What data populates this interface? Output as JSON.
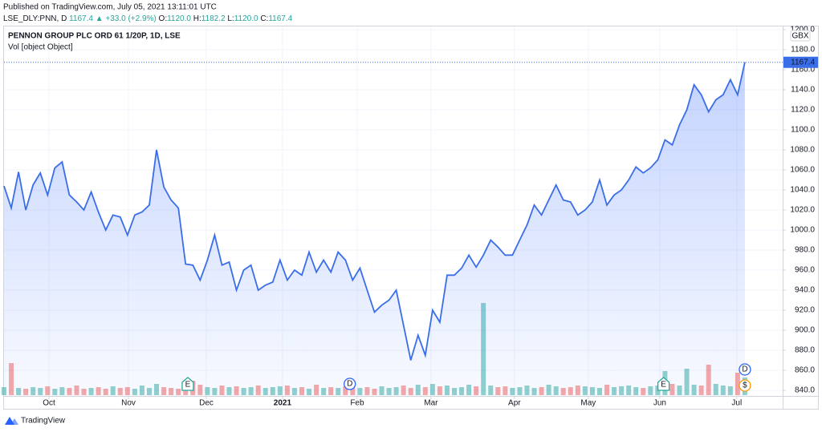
{
  "header": {
    "published": "Published on TradingView.com, July 05, 2021 13:11:01 UTC",
    "symbol": "LSE_DLY:PNN, D",
    "last": "1167.4",
    "arrow": "▲",
    "change": "+33.0 (+2.9%)",
    "o_label": "O:",
    "o": "1120.0",
    "h_label": "H:",
    "h": "1182.2",
    "l_label": "L:",
    "l": "1120.0",
    "c_label": "C:",
    "c": "1167.4"
  },
  "footer": {
    "brand": "TradingView"
  },
  "chart_data": {
    "type": "line",
    "title": "PENNON GROUP PLC ORD 61 1/20P, 1D, LSE",
    "subtitle": "Vol [object Object]",
    "currency": "GBX",
    "last_label": "1167.4",
    "area": true,
    "grid": true,
    "series": [
      {
        "name": "PNN",
        "color": "#3a6ee8",
        "values": [
          1044,
          1022,
          1058,
          1020,
          1045,
          1057,
          1035,
          1062,
          1068,
          1035,
          1028,
          1020,
          1038,
          1018,
          1000,
          1015,
          1013,
          995,
          1015,
          1018,
          1025,
          1080,
          1043,
          1030,
          1022,
          966,
          965,
          950,
          970,
          995,
          965,
          968,
          940,
          960,
          965,
          940,
          945,
          948,
          970,
          950,
          960,
          955,
          978,
          958,
          970,
          958,
          978,
          970,
          950,
          962,
          940,
          918,
          925,
          930,
          940,
          905,
          870,
          895,
          875,
          920,
          908,
          955,
          955,
          962,
          975,
          963,
          975,
          990,
          983,
          975,
          975,
          990,
          1005,
          1025,
          1015,
          1030,
          1045,
          1030,
          1028,
          1015,
          1020,
          1028,
          1050,
          1025,
          1035,
          1040,
          1050,
          1063,
          1057,
          1062,
          1070,
          1090,
          1085,
          1105,
          1120,
          1145,
          1135,
          1118,
          1130,
          1135,
          1150,
          1135,
          1167.4
        ]
      }
    ],
    "volume": {
      "up_color": "rgba(38,166,154,0.5)",
      "down_color": "rgba(239,83,80,0.5)",
      "values": [
        10,
        40,
        9,
        8,
        10,
        9,
        11,
        8,
        10,
        9,
        12,
        8,
        9,
        10,
        8,
        11,
        9,
        10,
        8,
        12,
        9,
        14,
        10,
        9,
        8,
        11,
        18,
        13,
        10,
        9,
        12,
        10,
        11,
        9,
        10,
        12,
        9,
        10,
        11,
        12,
        9,
        10,
        8,
        13,
        9,
        10,
        9,
        11,
        12,
        9,
        10,
        8,
        11,
        9,
        10,
        12,
        9,
        13,
        10,
        14,
        11,
        12,
        9,
        10,
        13,
        11,
        115,
        12,
        10,
        11,
        9,
        10,
        12,
        9,
        10,
        13,
        11,
        9,
        10,
        12,
        11,
        10,
        9,
        13,
        10,
        11,
        12,
        10,
        9,
        11,
        12,
        30,
        14,
        12,
        33,
        13,
        12,
        38,
        14,
        12,
        11,
        28,
        22
      ]
    },
    "events": [
      {
        "x": 25.3,
        "label": "E",
        "kind": "earnings"
      },
      {
        "x": 47.6,
        "label": "D",
        "kind": "dividend"
      },
      {
        "x": 90.8,
        "label": "E",
        "kind": "earnings"
      },
      {
        "x": 102,
        "label": "D",
        "kind": "dividend"
      },
      {
        "x": 102,
        "label": "$",
        "kind": "split"
      }
    ],
    "xlim": [
      0,
      107.2
    ],
    "xticks": [
      {
        "value": 6.19,
        "label": "Oct"
      },
      {
        "value": 17.13,
        "label": "Nov"
      },
      {
        "value": 27.85,
        "label": "Dec"
      },
      {
        "value": 38.34,
        "label": "2021"
      },
      {
        "value": 48.62,
        "label": "Feb"
      },
      {
        "value": 58.78,
        "label": "Mar"
      },
      {
        "value": 70.27,
        "label": "Apr"
      },
      {
        "value": 80.44,
        "label": "May"
      },
      {
        "value": 90.28,
        "label": "Jun"
      },
      {
        "value": 100.88,
        "label": "Jul"
      }
    ],
    "ylim": [
      834.4,
      1203.2
    ],
    "yticks": [
      {
        "value": 840,
        "label": "840.0"
      },
      {
        "value": 860,
        "label": "860.0"
      },
      {
        "value": 880,
        "label": "880.0"
      },
      {
        "value": 900,
        "label": "900.0"
      },
      {
        "value": 920,
        "label": "920.0"
      },
      {
        "value": 940,
        "label": "940.0"
      },
      {
        "value": 960,
        "label": "960.0"
      },
      {
        "value": 980,
        "label": "980.0"
      },
      {
        "value": 1000,
        "label": "1000.0"
      },
      {
        "value": 1020,
        "label": "1020.0"
      },
      {
        "value": 1040,
        "label": "1040.0"
      },
      {
        "value": 1060,
        "label": "1060.0"
      },
      {
        "value": 1080,
        "label": "1080.0"
      },
      {
        "value": 1100,
        "label": "1100.0"
      },
      {
        "value": 1120,
        "label": "1120.0"
      },
      {
        "value": 1140,
        "label": "1140.0"
      },
      {
        "value": 1160,
        "label": "1160.0"
      },
      {
        "value": 1180,
        "label": "1180.0"
      },
      {
        "value": 1200,
        "label": "1200.0"
      }
    ]
  }
}
